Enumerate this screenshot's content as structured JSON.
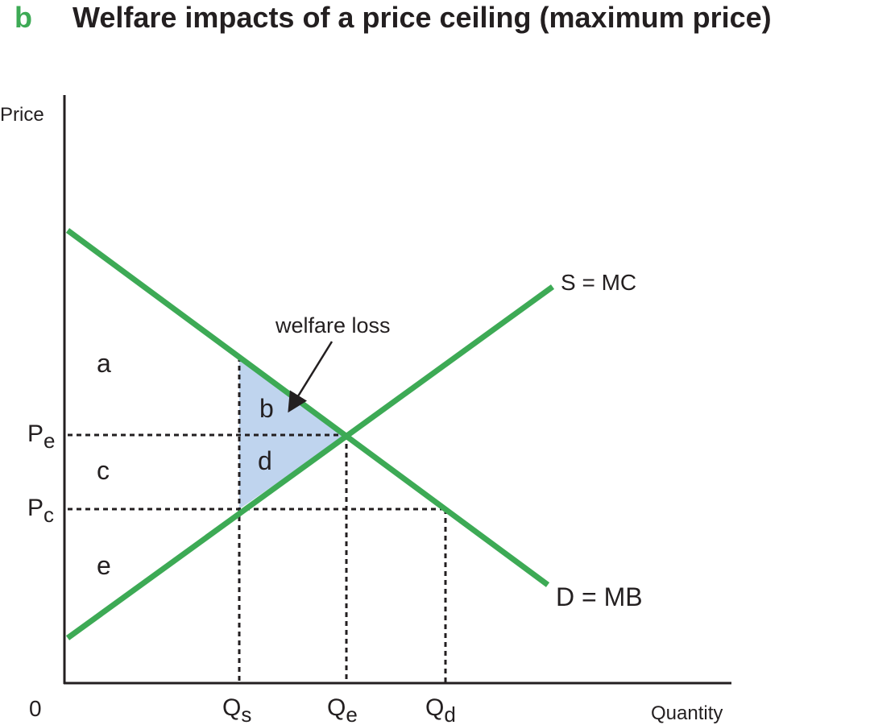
{
  "header": {
    "letter": "b",
    "title": "Welfare impacts of a price ceiling (maximum price)"
  },
  "axes": {
    "y_label": "Price",
    "x_label": "Quantity",
    "origin": "0"
  },
  "curves": {
    "supply": "S = MC",
    "demand": "D = MB"
  },
  "annotation": "welfare loss",
  "areas": {
    "a": "a",
    "b": "b",
    "c": "c",
    "d": "d",
    "e": "e"
  },
  "price_labels": [
    {
      "main": "P",
      "sub": "e"
    },
    {
      "main": "P",
      "sub": "c"
    }
  ],
  "quantity_labels": [
    {
      "main": "Q",
      "sub": "s"
    },
    {
      "main": "Q",
      "sub": "e"
    },
    {
      "main": "Q",
      "sub": "d"
    }
  ]
}
